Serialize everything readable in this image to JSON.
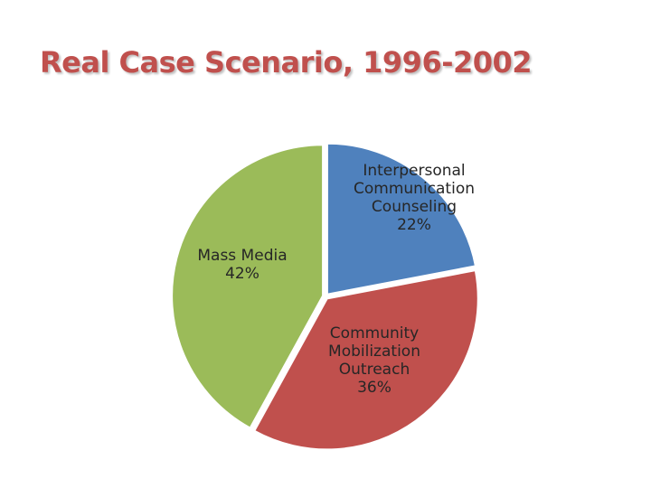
{
  "slide": {
    "title": "Real Case Scenario, 1996-2002"
  },
  "chart_data": {
    "type": "pie",
    "title": "",
    "slices": [
      {
        "lines": [
          "Interpersonal",
          "Communication",
          "Counseling",
          "22%"
        ],
        "value": 22,
        "color": "#4f81bd"
      },
      {
        "lines": [
          "Community",
          "Mobilization",
          "Outreach",
          "36%"
        ],
        "value": 36,
        "color": "#c0504d"
      },
      {
        "lines": [
          "Mass Media",
          "42%"
        ],
        "value": 42,
        "color": "#9bbb59"
      }
    ],
    "start_angle_deg": 0,
    "direction": "clockwise",
    "legend": "none",
    "data_labels": "inside"
  }
}
